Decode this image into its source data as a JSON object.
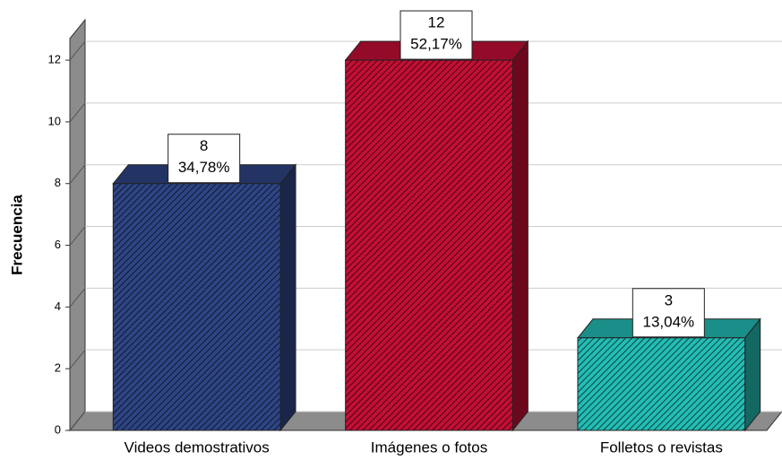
{
  "chart_data": {
    "type": "bar",
    "y_axis_label": "Frecuencia",
    "categories": [
      "Videos demostrativos",
      "Imágenes o fotos",
      "Folletos o revistas"
    ],
    "series": [
      {
        "name": "Frecuencia",
        "colors": [
          "#2e4585",
          "#c40f35",
          "#22bdb5"
        ],
        "values": [
          8,
          12,
          3
        ]
      }
    ],
    "percent_labels": [
      "34,78%",
      "52,17%",
      "13,04%"
    ],
    "ylim": [
      0,
      12.7
    ],
    "yticks": [
      0,
      2,
      4,
      6,
      8,
      10,
      12
    ],
    "grid": true
  }
}
